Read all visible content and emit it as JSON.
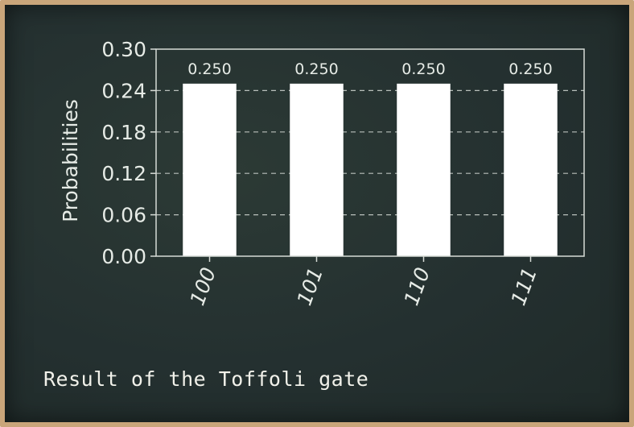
{
  "caption": "Result of the Toffoli gate",
  "colors": {
    "board": "#243030",
    "bar": "#ffffff",
    "text": "#e6ebe6",
    "frame": "#c9a57a"
  },
  "chart_data": {
    "type": "bar",
    "categories": [
      "100",
      "101",
      "110",
      "111"
    ],
    "values": [
      0.25,
      0.25,
      0.25,
      0.25
    ],
    "data_labels": [
      "0.250",
      "0.250",
      "0.250",
      "0.250"
    ],
    "ylabel": "Probabilities",
    "xlabel": "",
    "ylim": [
      0,
      0.3
    ],
    "yticks": [
      0,
      0.06,
      0.12,
      0.18,
      0.24,
      0.3
    ],
    "ytick_labels": [
      "0.00",
      "0.06",
      "0.12",
      "0.18",
      "0.24",
      "0.30"
    ],
    "grid": "horizontal-dashed",
    "legend": "none"
  }
}
